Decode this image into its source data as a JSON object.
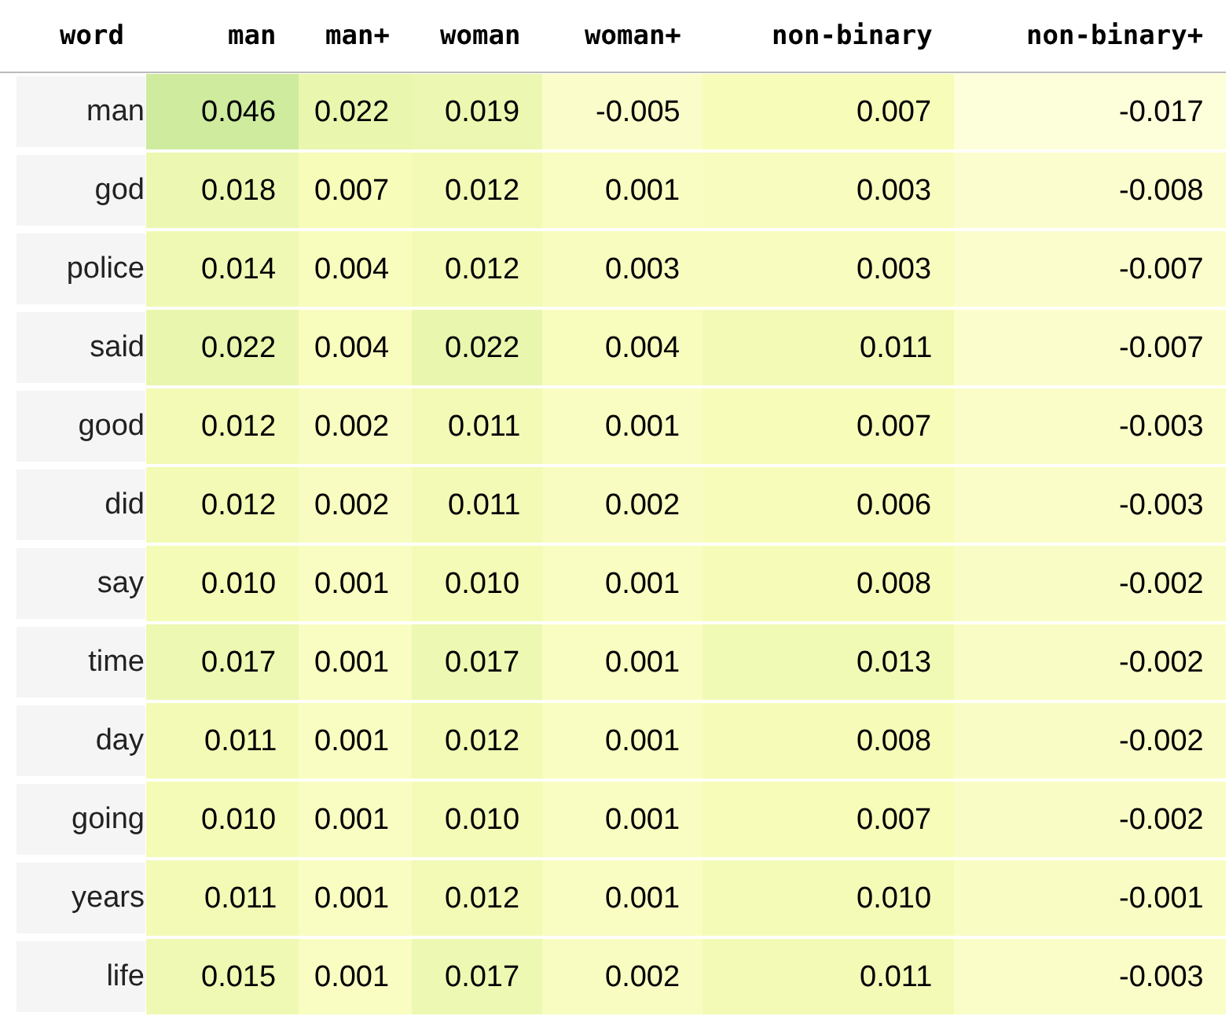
{
  "chart_data": {
    "type": "heatmap",
    "ylabel": "word",
    "categories": [
      "man",
      "man+",
      "woman",
      "woman+",
      "non-binary",
      "non-binary+"
    ],
    "y_categories": [
      "man",
      "god",
      "police",
      "said",
      "good",
      "did",
      "say",
      "time",
      "day",
      "going",
      "years",
      "life"
    ],
    "cells": [
      [
        0.046,
        0.022,
        0.019,
        -0.005,
        0.007,
        -0.017
      ],
      [
        0.018,
        0.007,
        0.012,
        0.001,
        0.003,
        -0.008
      ],
      [
        0.014,
        0.004,
        0.012,
        0.003,
        0.003,
        -0.007
      ],
      [
        0.022,
        0.004,
        0.022,
        0.004,
        0.011,
        -0.007
      ],
      [
        0.012,
        0.002,
        0.011,
        0.001,
        0.007,
        -0.003
      ],
      [
        0.012,
        0.002,
        0.011,
        0.002,
        0.006,
        -0.003
      ],
      [
        0.01,
        0.001,
        0.01,
        0.001,
        0.008,
        -0.002
      ],
      [
        0.017,
        0.001,
        0.017,
        0.001,
        0.013,
        -0.002
      ],
      [
        0.011,
        0.001,
        0.012,
        0.001,
        0.008,
        -0.002
      ],
      [
        0.01,
        0.001,
        0.01,
        0.001,
        0.007,
        -0.002
      ],
      [
        0.011,
        0.001,
        0.012,
        0.001,
        0.01,
        -0.001
      ],
      [
        0.015,
        0.001,
        0.017,
        0.002,
        0.011,
        -0.003
      ]
    ],
    "cell_labels": [
      [
        "0.046",
        "0.022",
        "0.019",
        "-0.005",
        "0.007",
        "-0.017"
      ],
      [
        "0.018",
        "0.007",
        "0.012",
        "0.001",
        "0.003",
        "-0.008"
      ],
      [
        "0.014",
        "0.004",
        "0.012",
        "0.003",
        "0.003",
        "-0.007"
      ],
      [
        "0.022",
        "0.004",
        "0.022",
        "0.004",
        "0.011",
        "-0.007"
      ],
      [
        "0.012",
        "0.002",
        "0.011",
        "0.001",
        "0.007",
        "-0.003"
      ],
      [
        "0.012",
        "0.002",
        "0.011",
        "0.002",
        "0.006",
        "-0.003"
      ],
      [
        "0.010",
        "0.001",
        "0.010",
        "0.001",
        "0.008",
        "-0.002"
      ],
      [
        "0.017",
        "0.001",
        "0.017",
        "0.001",
        "0.013",
        "-0.002"
      ],
      [
        "0.011",
        "0.001",
        "0.012",
        "0.001",
        "0.008",
        "-0.002"
      ],
      [
        "0.010",
        "0.001",
        "0.010",
        "0.001",
        "0.007",
        "-0.002"
      ],
      [
        "0.011",
        "0.001",
        "0.012",
        "0.001",
        "0.010",
        "-0.001"
      ],
      [
        "0.015",
        "0.001",
        "0.017",
        "0.002",
        "0.011",
        "-0.003"
      ]
    ]
  }
}
